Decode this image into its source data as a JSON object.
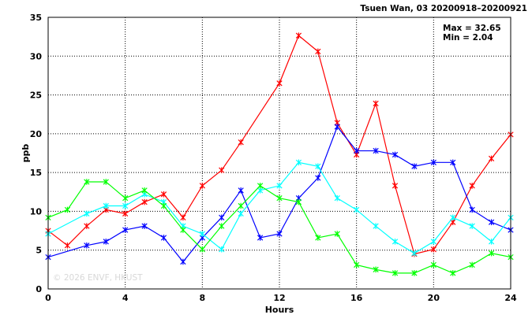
{
  "chart_data": {
    "type": "line",
    "title": "Tsuen Wan, 03 20200918–20200921",
    "xlabel": "Hours",
    "ylabel": "ppb",
    "xlim": [
      0,
      24
    ],
    "ylim": [
      0,
      35
    ],
    "xticks": [
      0,
      4,
      8,
      12,
      16,
      20,
      24
    ],
    "yticks": [
      0,
      5,
      10,
      15,
      20,
      25,
      30,
      35
    ],
    "grid": true,
    "max_label": "Max = 32.65",
    "min_label": "Min =  2.04",
    "watermark": "© 2026  ENVF, HKUST",
    "x": [
      0,
      1,
      2,
      3,
      4,
      5,
      6,
      7,
      8,
      9,
      10,
      11,
      12,
      13,
      14,
      15,
      16,
      17,
      18,
      19,
      20,
      21,
      22,
      23,
      24
    ],
    "series": [
      {
        "color": "#ff0000",
        "values": [
          7.5,
          5.6,
          8.1,
          10.2,
          9.7,
          11.2,
          12.2,
          9.2,
          13.3,
          15.3,
          18.9,
          null,
          26.5,
          32.65,
          30.6,
          21.4,
          17.3,
          23.9,
          13.3,
          4.5,
          5.1,
          8.6,
          13.3,
          16.8,
          19.9
        ]
      },
      {
        "color": "#0000ff",
        "values": [
          4.1,
          null,
          5.6,
          6.1,
          7.6,
          8.1,
          6.6,
          3.5,
          6.6,
          9.2,
          12.7,
          6.6,
          7.1,
          11.7,
          14.3,
          20.9,
          17.8,
          17.8,
          17.3,
          15.8,
          16.3,
          16.3,
          10.2,
          8.6,
          7.6
        ]
      },
      {
        "color": "#00ffff",
        "values": [
          7.1,
          null,
          9.7,
          10.7,
          10.7,
          12.2,
          11.2,
          8.1,
          7.1,
          5.1,
          9.7,
          12.7,
          13.3,
          16.3,
          15.8,
          11.7,
          10.2,
          8.1,
          6.1,
          4.6,
          6.1,
          9.2,
          8.1,
          6.1,
          9.2
        ]
      },
      {
        "color": "#00ff00",
        "values": [
          9.2,
          10.2,
          13.8,
          13.8,
          11.7,
          12.7,
          10.7,
          7.6,
          5.1,
          8.1,
          10.7,
          13.3,
          11.7,
          11.2,
          6.6,
          7.1,
          3.1,
          2.5,
          2.04,
          2.04,
          3.1,
          2.04,
          3.1,
          4.6,
          4.1
        ]
      }
    ]
  }
}
